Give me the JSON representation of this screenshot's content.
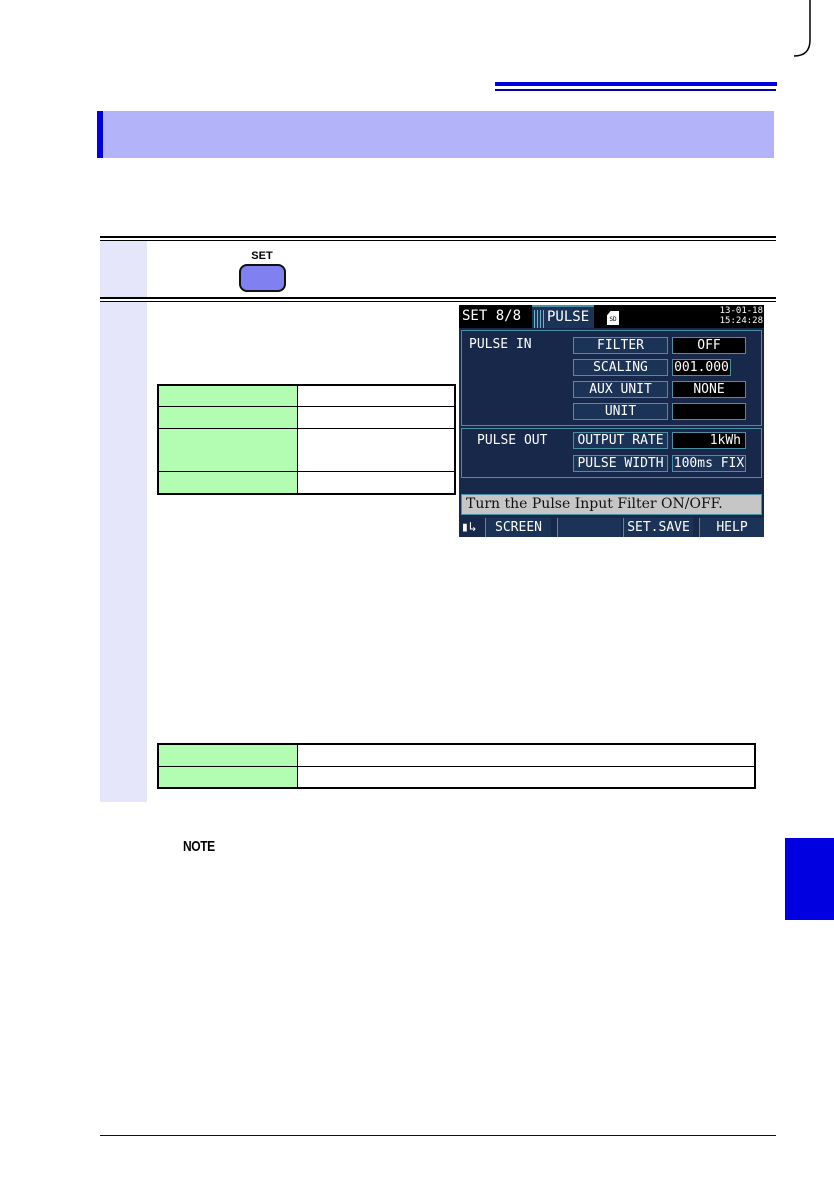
{
  "step_button": {
    "label": "SET",
    "color": "#8080f0"
  },
  "device_screen": {
    "title": "SET  8/8",
    "tab": "PULSE",
    "sd_icon": "SD",
    "date": "13-01-18",
    "time": "15:24:28",
    "pulse_in": {
      "heading": "PULSE IN",
      "rows": [
        {
          "label": "FILTER",
          "value": "OFF"
        },
        {
          "label": "SCALING",
          "value": "001.000"
        },
        {
          "label": "AUX UNIT",
          "value": "NONE"
        },
        {
          "label": "UNIT",
          "value": ""
        }
      ]
    },
    "pulse_out": {
      "heading": "PULSE OUT",
      "rows": [
        {
          "label": "OUTPUT RATE",
          "value": "1kWh"
        },
        {
          "label": "PULSE WIDTH",
          "value": "100ms FIX"
        }
      ]
    },
    "help_text": "Turn the Pulse Input Filter ON/OFF.",
    "function_keys": [
      "SCREEN",
      "",
      "SET.SAVE",
      "HELP"
    ]
  },
  "note_label": "NOTE",
  "colors": {
    "header_band": "#b3b3fa",
    "accent_blue": "#0000e0",
    "step_column": "#e6e6fa",
    "table_key": "#b3fdb3"
  }
}
